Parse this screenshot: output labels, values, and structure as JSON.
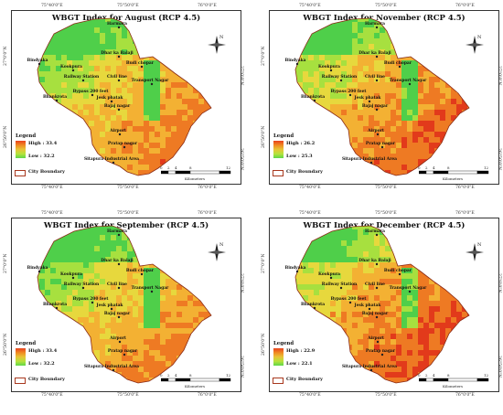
{
  "panels": [
    {
      "id": "aug",
      "title": "WBGT Index for August (RCP 4.5)",
      "high": "High : 33.4",
      "low": "Low : 32.2",
      "colors": [
        "#e23a1b",
        "#ee7a23",
        "#f3b133",
        "#e7d83d",
        "#a7e03f",
        "#4fcf4a"
      ],
      "bias": 0.0
    },
    {
      "id": "nov",
      "title": "WBGT Index for November (RCP 4.5)",
      "high": "High : 26.2",
      "low": "Low : 25.3",
      "colors": [
        "#e23a1b",
        "#ee7a23",
        "#f3b133",
        "#e7d83d",
        "#a7e03f",
        "#4fcf4a"
      ],
      "bias": 0.08
    },
    {
      "id": "sep",
      "title": "WBGT Index for September (RCP 4.5)",
      "high": "High : 33.4",
      "low": "Low : 32.2",
      "colors": [
        "#e23a1b",
        "#ee7a23",
        "#f3b133",
        "#e7d83d",
        "#a7e03f",
        "#4fcf4a"
      ],
      "bias": -0.02
    },
    {
      "id": "dec",
      "title": "WBGT Index for December (RCP 4.5)",
      "high": "High : 22.9",
      "low": "Low : 22.1",
      "colors": [
        "#e23a1b",
        "#ee7a23",
        "#f3b133",
        "#e7d83d",
        "#a7e03f",
        "#4fcf4a"
      ],
      "bias": 0.12
    }
  ],
  "common": {
    "x_ticks": [
      "75°40'0\"E",
      "75°50'0\"E",
      "76°0'0\"E"
    ],
    "y_ticks": [
      "27°0'0\"N",
      "26°50'0\"N"
    ],
    "legend_label": "Legend",
    "city_boundary": "City Boundary",
    "scale_numbers": [
      "0",
      "2",
      "4",
      "8",
      "12"
    ],
    "scale_unit": "Kilometers",
    "north_label": "N",
    "places": [
      "Harmara",
      "Dhar ka Balaji",
      "Bindyaka",
      "Kookpura",
      "Budi chopar",
      "Railway Station",
      "Civil line",
      "Transport Nagar",
      "Bypass 200 feet",
      "Jesk phatak",
      "Bhankrota",
      "Bajaj nagar",
      "Airport",
      "Pratap nagar",
      "Sitapura Industrial Area"
    ]
  }
}
